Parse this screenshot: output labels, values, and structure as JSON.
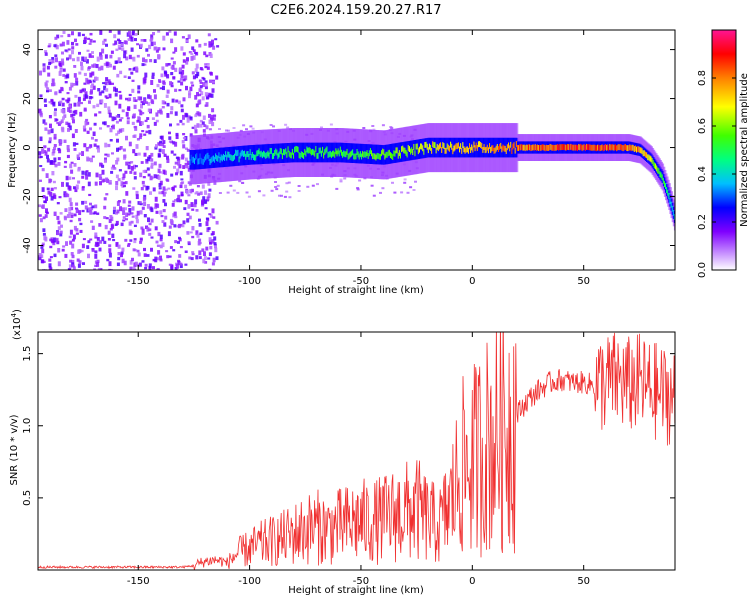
{
  "figure": {
    "title": "C2E6.2024.159.20.27.R17"
  },
  "chart_data": [
    {
      "type": "heatmap",
      "xlabel": "Height of straight line (km)",
      "ylabel": "Frequency (Hz)",
      "xlim": [
        -195,
        91
      ],
      "ylim": [
        -50,
        48
      ],
      "x_ticks": [
        -150,
        -100,
        -50,
        0,
        50
      ],
      "y_ticks": [
        -40,
        -20,
        0,
        20,
        40
      ],
      "colorbar": {
        "label": "Normalized spectral amplitude",
        "range": [
          0,
          1
        ],
        "ticks": [
          0.0,
          0.2,
          0.4,
          0.6,
          0.8
        ],
        "tick_labels": [
          "0.0",
          "0.2",
          "0.4",
          "0.6",
          "0.8"
        ],
        "colors": [
          "#ffffff",
          "#7f00ff",
          "#0000ff",
          "#00bfff",
          "#00ff80",
          "#80ff00",
          "#ffff00",
          "#ff8000",
          "#ff0000",
          "#ff1493"
        ]
      },
      "signal_track": {
        "x": [
          -125,
          -100,
          -80,
          -60,
          -40,
          -20,
          0,
          20,
          40,
          60,
          70,
          75,
          80,
          85,
          88,
          91
        ],
        "freq": [
          -5,
          -3,
          -2,
          -2,
          -3,
          0,
          0,
          0,
          0,
          0,
          0,
          -1,
          -5,
          -12,
          -20,
          -30
        ],
        "amplitude": [
          0.35,
          0.45,
          0.55,
          0.55,
          0.6,
          0.7,
          0.8,
          0.85,
          0.9,
          0.9,
          0.85,
          0.8,
          0.7,
          0.55,
          0.45,
          0.35
        ]
      }
    },
    {
      "type": "line",
      "xlabel": "Height of straight line (km)",
      "ylabel": "SNR (10 * v/v)",
      "y_multiplier": "(x10",
      "y_multiplier_exp": "4",
      "y_multiplier_close": ")",
      "xlim": [
        -195,
        91
      ],
      "ylim": [
        0,
        1.65
      ],
      "x_ticks": [
        -150,
        -100,
        -50,
        0,
        50
      ],
      "y_ticks": [
        0.5,
        1.0,
        1.5
      ],
      "y_tick_labels": [
        "0.5",
        "1.0",
        "1.5"
      ],
      "color": "#f03030",
      "series": [
        {
          "x": [
            -195,
            -150,
            -130,
            -125,
            -120,
            -115,
            -110,
            -105,
            -100,
            -95,
            -90,
            -85,
            -80,
            -75,
            -70,
            -65,
            -60,
            -55,
            -50,
            -45,
            -40,
            -35,
            -30,
            -25,
            -20,
            -15,
            -10,
            -5,
            0,
            5,
            10,
            15,
            20,
            25,
            30,
            35,
            40,
            45,
            50,
            55,
            60,
            65,
            70,
            75,
            80,
            85,
            91
          ],
          "y": [
            0.02,
            0.02,
            0.02,
            0.03,
            0.06,
            0.07,
            0.05,
            0.12,
            0.15,
            0.18,
            0.2,
            0.22,
            0.25,
            0.28,
            0.3,
            0.28,
            0.3,
            0.32,
            0.34,
            0.33,
            0.35,
            0.38,
            0.4,
            0.42,
            0.35,
            0.3,
            0.45,
            0.7,
            0.75,
            0.85,
            0.92,
            1.0,
            1.08,
            1.18,
            1.25,
            1.3,
            1.32,
            1.3,
            1.3,
            1.28,
            1.3,
            1.32,
            1.28,
            1.3,
            1.25,
            1.22,
            1.2
          ]
        }
      ]
    }
  ]
}
